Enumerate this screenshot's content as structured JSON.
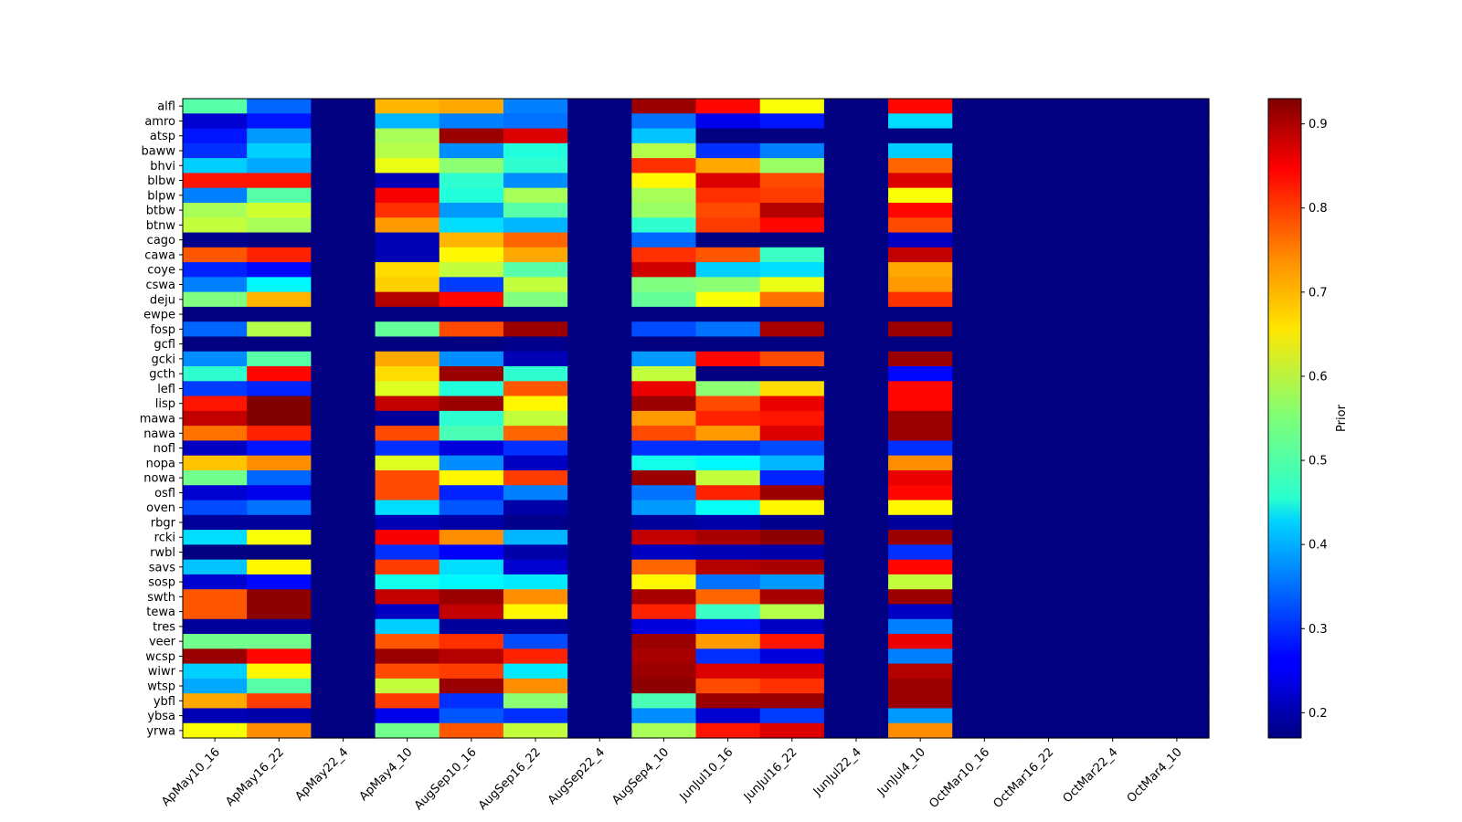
{
  "chart_data": {
    "type": "heatmap",
    "title": "",
    "xlabel": "",
    "ylabel": "",
    "colorbar_label": "Prior",
    "colorbar_range": [
      0.17,
      0.93
    ],
    "colorbar_ticks": [
      "0.2",
      "0.3",
      "0.4",
      "0.5",
      "0.6",
      "0.7",
      "0.8",
      "0.9"
    ],
    "colormap": "jet",
    "x_categories": [
      "ApMay10_16",
      "ApMay16_22",
      "ApMay22_4",
      "ApMay4_10",
      "AugSep10_16",
      "AugSep16_22",
      "AugSep22_4",
      "AugSep4_10",
      "JunJul10_16",
      "JunJul16_22",
      "JunJul22_4",
      "JunJul4_10",
      "OctMar10_16",
      "OctMar16_22",
      "OctMar22_4",
      "OctMar4_10"
    ],
    "y_categories": [
      "alfl",
      "amro",
      "atsp",
      "baww",
      "bhvi",
      "blbw",
      "blpw",
      "btbw",
      "btnw",
      "cago",
      "cawa",
      "coye",
      "cswa",
      "deju",
      "ewpe",
      "fosp",
      "gcfl",
      "gcki",
      "gcth",
      "lefl",
      "lisp",
      "mawa",
      "nawa",
      "nofl",
      "nopa",
      "nowa",
      "osfl",
      "oven",
      "rbgr",
      "rcki",
      "rwbl",
      "savs",
      "sosp",
      "swth",
      "tewa",
      "tres",
      "veer",
      "wcsp",
      "wiwr",
      "wtsp",
      "ybfl",
      "ybsa",
      "yrwa"
    ],
    "values": [
      [
        0.52,
        0.34,
        0.17,
        0.7,
        0.71,
        0.36,
        0.17,
        0.91,
        0.83,
        0.64,
        0.17,
        0.83,
        0.17,
        0.17,
        0.17,
        0.17
      ],
      [
        0.23,
        0.28,
        0.17,
        0.4,
        0.36,
        0.35,
        0.17,
        0.35,
        0.25,
        0.28,
        0.17,
        0.43,
        0.17,
        0.17,
        0.17,
        0.17
      ],
      [
        0.28,
        0.38,
        0.17,
        0.58,
        0.91,
        0.86,
        0.17,
        0.41,
        0.17,
        0.17,
        0.17,
        0.17,
        0.17,
        0.17,
        0.17,
        0.17
      ],
      [
        0.3,
        0.42,
        0.17,
        0.59,
        0.37,
        0.48,
        0.17,
        0.59,
        0.3,
        0.36,
        0.17,
        0.42,
        0.17,
        0.17,
        0.17,
        0.17
      ],
      [
        0.42,
        0.39,
        0.17,
        0.63,
        0.56,
        0.49,
        0.17,
        0.8,
        0.71,
        0.57,
        0.17,
        0.76,
        0.17,
        0.17,
        0.17,
        0.17
      ],
      [
        0.82,
        0.82,
        0.17,
        0.21,
        0.49,
        0.37,
        0.17,
        0.65,
        0.86,
        0.78,
        0.17,
        0.86,
        0.17,
        0.17,
        0.17,
        0.17
      ],
      [
        0.36,
        0.52,
        0.17,
        0.84,
        0.48,
        0.58,
        0.17,
        0.58,
        0.8,
        0.79,
        0.17,
        0.64,
        0.17,
        0.17,
        0.17,
        0.17
      ],
      [
        0.58,
        0.61,
        0.17,
        0.8,
        0.38,
        0.52,
        0.17,
        0.57,
        0.78,
        0.89,
        0.17,
        0.83,
        0.17,
        0.17,
        0.17,
        0.17
      ],
      [
        0.6,
        0.58,
        0.17,
        0.72,
        0.43,
        0.4,
        0.17,
        0.49,
        0.79,
        0.83,
        0.17,
        0.78,
        0.17,
        0.17,
        0.17,
        0.17
      ],
      [
        0.18,
        0.17,
        0.17,
        0.21,
        0.7,
        0.76,
        0.17,
        0.34,
        0.17,
        0.17,
        0.17,
        0.22,
        0.17,
        0.17,
        0.17,
        0.17
      ],
      [
        0.77,
        0.81,
        0.17,
        0.21,
        0.65,
        0.71,
        0.17,
        0.8,
        0.77,
        0.5,
        0.17,
        0.88,
        0.17,
        0.17,
        0.17,
        0.17
      ],
      [
        0.29,
        0.27,
        0.17,
        0.67,
        0.6,
        0.52,
        0.17,
        0.87,
        0.42,
        0.43,
        0.17,
        0.71,
        0.17,
        0.17,
        0.17,
        0.17
      ],
      [
        0.36,
        0.45,
        0.17,
        0.68,
        0.31,
        0.6,
        0.17,
        0.55,
        0.56,
        0.63,
        0.17,
        0.72,
        0.17,
        0.17,
        0.17,
        0.17
      ],
      [
        0.55,
        0.7,
        0.17,
        0.89,
        0.83,
        0.55,
        0.17,
        0.53,
        0.64,
        0.75,
        0.17,
        0.8,
        0.17,
        0.17,
        0.17,
        0.17
      ],
      [
        0.17,
        0.17,
        0.17,
        0.17,
        0.17,
        0.17,
        0.17,
        0.17,
        0.17,
        0.17,
        0.17,
        0.17,
        0.17,
        0.17,
        0.17,
        0.17
      ],
      [
        0.34,
        0.59,
        0.17,
        0.53,
        0.78,
        0.91,
        0.17,
        0.32,
        0.35,
        0.9,
        0.17,
        0.91,
        0.17,
        0.17,
        0.17,
        0.17
      ],
      [
        0.17,
        0.17,
        0.17,
        0.17,
        0.17,
        0.18,
        0.17,
        0.17,
        0.17,
        0.17,
        0.17,
        0.17,
        0.17,
        0.17,
        0.17,
        0.17
      ],
      [
        0.37,
        0.52,
        0.17,
        0.71,
        0.37,
        0.21,
        0.17,
        0.38,
        0.83,
        0.78,
        0.17,
        0.91,
        0.17,
        0.17,
        0.17,
        0.17
      ],
      [
        0.49,
        0.83,
        0.17,
        0.67,
        0.91,
        0.49,
        0.17,
        0.6,
        0.17,
        0.17,
        0.17,
        0.27,
        0.17,
        0.17,
        0.17,
        0.17
      ],
      [
        0.31,
        0.29,
        0.17,
        0.62,
        0.48,
        0.77,
        0.17,
        0.85,
        0.56,
        0.67,
        0.17,
        0.83,
        0.17,
        0.17,
        0.17,
        0.17
      ],
      [
        0.82,
        0.93,
        0.17,
        0.88,
        0.91,
        0.65,
        0.17,
        0.91,
        0.78,
        0.85,
        0.17,
        0.83,
        0.17,
        0.17,
        0.17,
        0.17
      ],
      [
        0.88,
        0.93,
        0.17,
        0.19,
        0.49,
        0.6,
        0.17,
        0.72,
        0.81,
        0.82,
        0.17,
        0.91,
        0.17,
        0.17,
        0.17,
        0.17
      ],
      [
        0.75,
        0.81,
        0.17,
        0.78,
        0.51,
        0.76,
        0.17,
        0.78,
        0.72,
        0.86,
        0.17,
        0.91,
        0.17,
        0.17,
        0.17,
        0.17
      ],
      [
        0.22,
        0.28,
        0.17,
        0.3,
        0.24,
        0.3,
        0.17,
        0.3,
        0.3,
        0.32,
        0.17,
        0.3,
        0.17,
        0.17,
        0.17,
        0.17
      ],
      [
        0.69,
        0.73,
        0.17,
        0.62,
        0.37,
        0.22,
        0.17,
        0.47,
        0.45,
        0.4,
        0.17,
        0.73,
        0.17,
        0.17,
        0.17,
        0.17
      ],
      [
        0.54,
        0.34,
        0.17,
        0.78,
        0.65,
        0.79,
        0.17,
        0.91,
        0.6,
        0.29,
        0.17,
        0.85,
        0.17,
        0.17,
        0.17,
        0.17
      ],
      [
        0.23,
        0.25,
        0.17,
        0.78,
        0.29,
        0.36,
        0.17,
        0.35,
        0.81,
        0.91,
        0.17,
        0.83,
        0.17,
        0.17,
        0.17,
        0.17
      ],
      [
        0.32,
        0.35,
        0.17,
        0.43,
        0.33,
        0.2,
        0.17,
        0.38,
        0.46,
        0.65,
        0.17,
        0.65,
        0.17,
        0.17,
        0.17,
        0.17
      ],
      [
        0.19,
        0.19,
        0.17,
        0.21,
        0.2,
        0.18,
        0.17,
        0.19,
        0.2,
        0.18,
        0.17,
        0.19,
        0.17,
        0.17,
        0.17,
        0.17
      ],
      [
        0.43,
        0.64,
        0.17,
        0.84,
        0.73,
        0.4,
        0.17,
        0.88,
        0.9,
        0.92,
        0.17,
        0.91,
        0.17,
        0.17,
        0.17,
        0.17
      ],
      [
        0.17,
        0.17,
        0.17,
        0.3,
        0.26,
        0.2,
        0.17,
        0.22,
        0.21,
        0.2,
        0.17,
        0.3,
        0.17,
        0.17,
        0.17,
        0.17
      ],
      [
        0.41,
        0.65,
        0.17,
        0.79,
        0.43,
        0.23,
        0.17,
        0.76,
        0.89,
        0.9,
        0.17,
        0.83,
        0.17,
        0.17,
        0.17,
        0.17
      ],
      [
        0.23,
        0.27,
        0.17,
        0.47,
        0.45,
        0.44,
        0.17,
        0.65,
        0.35,
        0.38,
        0.17,
        0.6,
        0.17,
        0.17,
        0.17,
        0.17
      ],
      [
        0.77,
        0.92,
        0.17,
        0.88,
        0.91,
        0.73,
        0.17,
        0.9,
        0.76,
        0.9,
        0.17,
        0.91,
        0.17,
        0.17,
        0.17,
        0.17
      ],
      [
        0.77,
        0.92,
        0.17,
        0.22,
        0.88,
        0.65,
        0.17,
        0.81,
        0.5,
        0.59,
        0.17,
        0.22,
        0.17,
        0.17,
        0.17,
        0.17
      ],
      [
        0.19,
        0.19,
        0.17,
        0.42,
        0.19,
        0.19,
        0.17,
        0.24,
        0.28,
        0.22,
        0.17,
        0.36,
        0.17,
        0.17,
        0.17,
        0.17
      ],
      [
        0.54,
        0.54,
        0.17,
        0.77,
        0.8,
        0.32,
        0.17,
        0.91,
        0.72,
        0.82,
        0.17,
        0.85,
        0.17,
        0.17,
        0.17,
        0.17
      ],
      [
        0.91,
        0.83,
        0.17,
        0.91,
        0.89,
        0.81,
        0.17,
        0.9,
        0.3,
        0.24,
        0.17,
        0.36,
        0.17,
        0.17,
        0.17,
        0.17
      ],
      [
        0.42,
        0.65,
        0.17,
        0.78,
        0.79,
        0.44,
        0.17,
        0.91,
        0.86,
        0.86,
        0.17,
        0.89,
        0.17,
        0.17,
        0.17,
        0.17
      ],
      [
        0.39,
        0.52,
        0.17,
        0.6,
        0.91,
        0.73,
        0.17,
        0.92,
        0.78,
        0.8,
        0.17,
        0.91,
        0.17,
        0.17,
        0.17,
        0.17
      ],
      [
        0.71,
        0.79,
        0.17,
        0.79,
        0.3,
        0.56,
        0.17,
        0.51,
        0.91,
        0.91,
        0.17,
        0.91,
        0.17,
        0.17,
        0.17,
        0.17
      ],
      [
        0.21,
        0.2,
        0.17,
        0.25,
        0.33,
        0.3,
        0.17,
        0.37,
        0.23,
        0.31,
        0.17,
        0.38,
        0.17,
        0.17,
        0.17,
        0.17
      ],
      [
        0.64,
        0.73,
        0.17,
        0.54,
        0.77,
        0.6,
        0.17,
        0.58,
        0.82,
        0.86,
        0.17,
        0.73,
        0.17,
        0.17,
        0.17,
        0.17
      ]
    ]
  }
}
